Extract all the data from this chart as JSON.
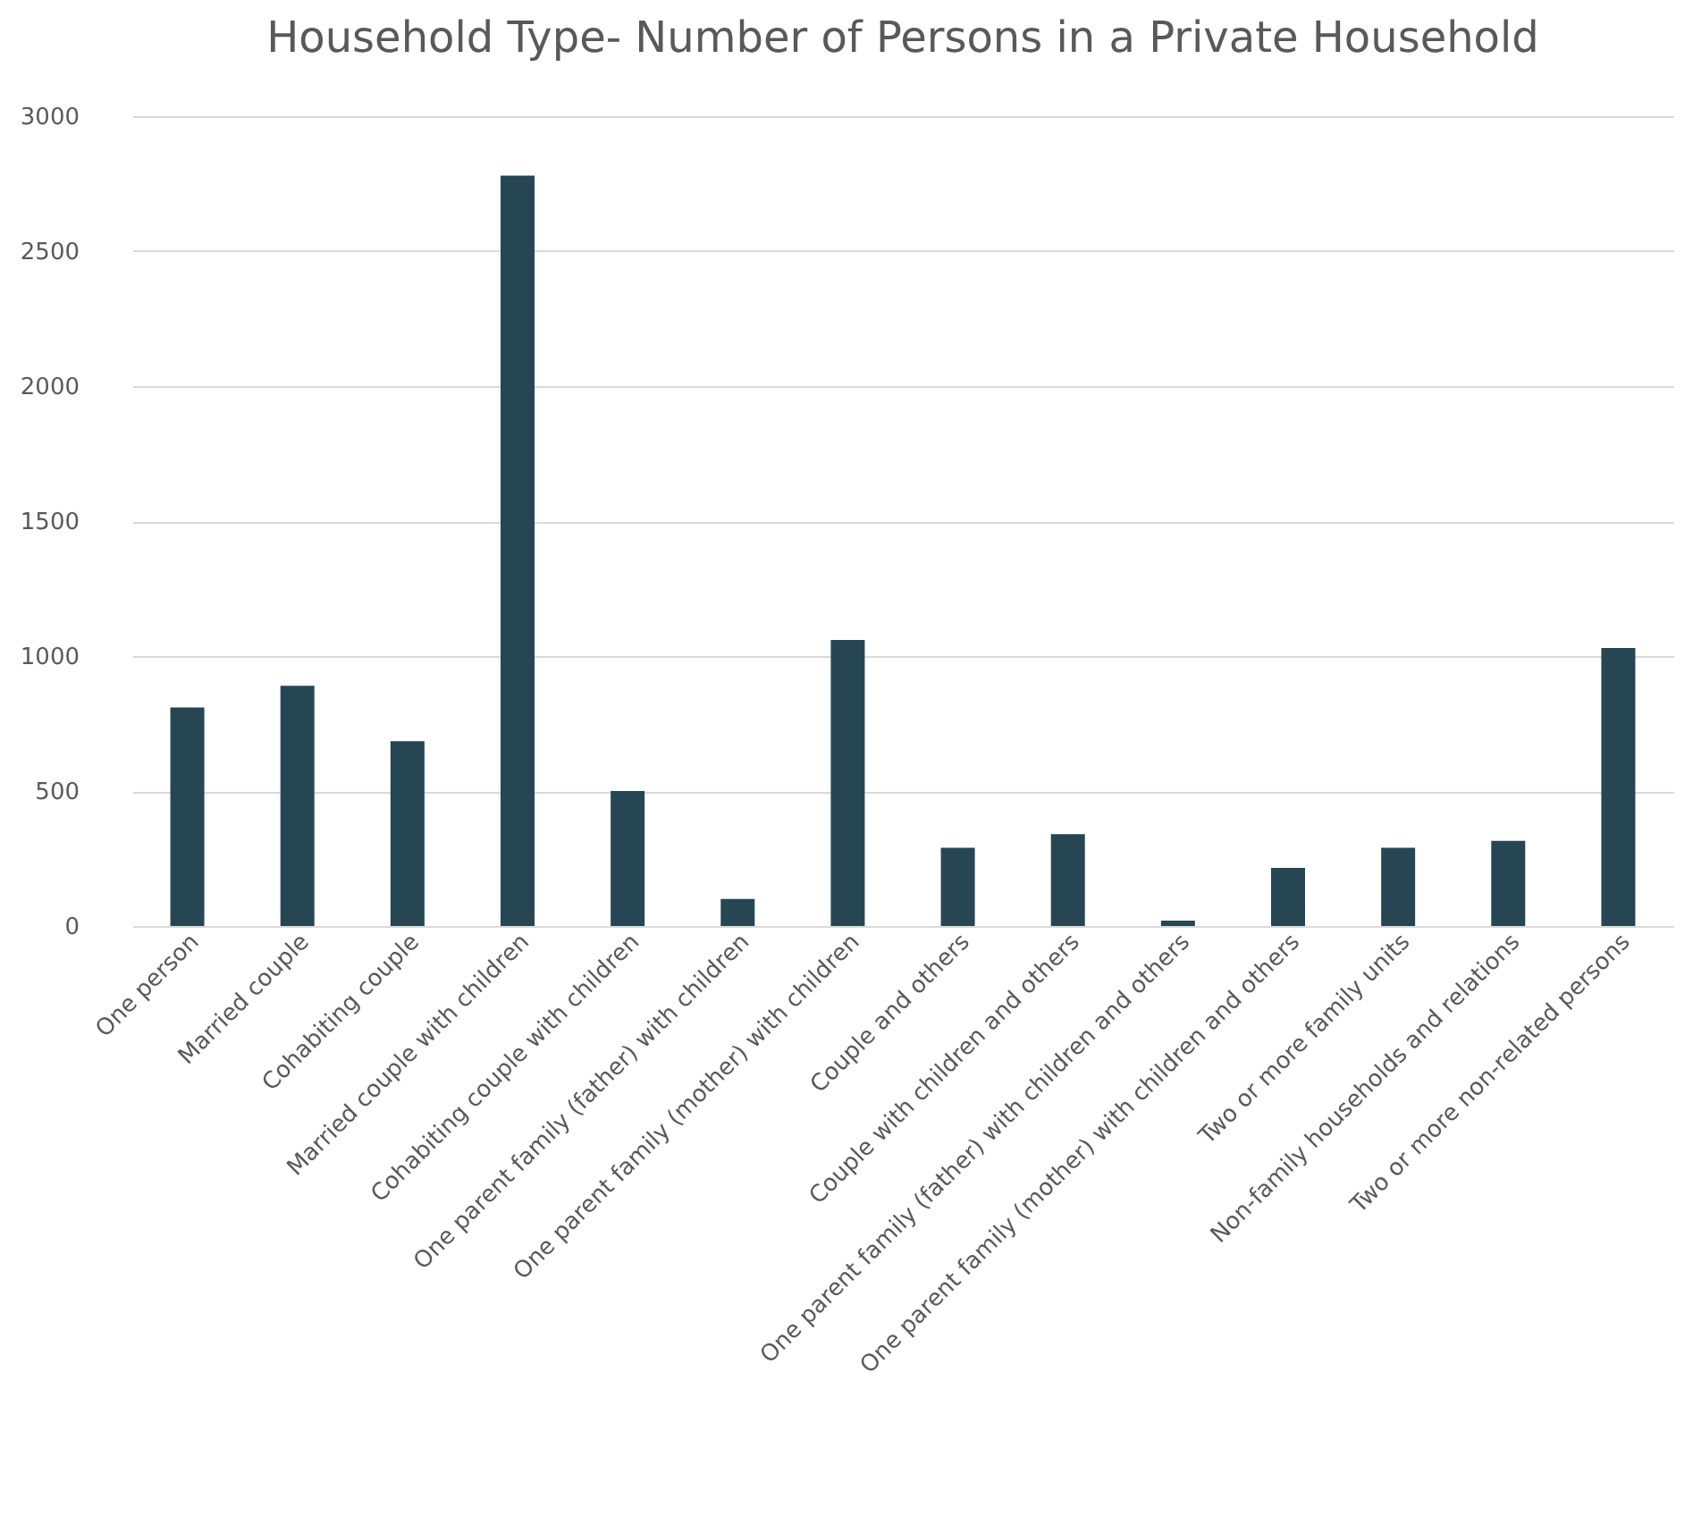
{
  "chart_data": {
    "type": "bar",
    "title": "Household Type- Number of Persons in a Private Household",
    "categories": [
      "One person",
      "Married couple",
      "Cohabiting couple",
      "Married couple with children",
      "Cohabiting couple with children",
      "One parent family (father) with children",
      "One parent family (mother) with children",
      "Couple and others",
      "Couple with children and others",
      "One parent family (father) with children and others",
      "One parent family (mother) with children and others",
      "Two or more family units",
      "Non-family households and relations",
      "Two or more non-related persons"
    ],
    "values": [
      810,
      890,
      685,
      2780,
      500,
      100,
      1060,
      290,
      340,
      20,
      215,
      290,
      315,
      1030
    ],
    "color": "#264653",
    "ylim": [
      0,
      3000
    ],
    "yticks": [
      0,
      500,
      1000,
      1500,
      2000,
      2500,
      3000
    ],
    "grid": "y"
  }
}
